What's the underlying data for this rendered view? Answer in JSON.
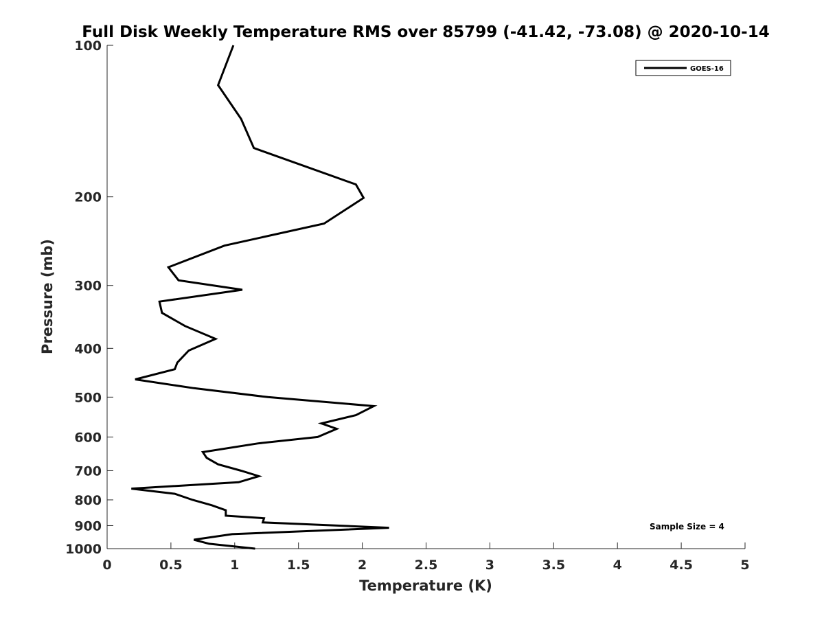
{
  "chart_data": {
    "type": "line",
    "title": "Full Disk Weekly Temperature RMS over 85799 (-41.42, -73.08) @ 2020-10-14",
    "xlabel": "Temperature (K)",
    "ylabel": "Pressure (mb)",
    "xlim": [
      0,
      5
    ],
    "ylim": [
      100,
      1000
    ],
    "y_scale": "log",
    "y_reversed": true,
    "x_ticks": [
      "0",
      "0.5",
      "1",
      "1.5",
      "2",
      "2.5",
      "3",
      "3.5",
      "4",
      "4.5",
      "5"
    ],
    "y_ticks": [
      "100",
      "200",
      "300",
      "400",
      "500",
      "600",
      "700",
      "800",
      "900",
      "1000"
    ],
    "grid": false,
    "legend_position": "top-right",
    "annotation": "Sample Size = 4",
    "series": [
      {
        "name": "GOES-16",
        "color": "#000000",
        "points": [
          [
            0.99,
            100
          ],
          [
            0.87,
            120
          ],
          [
            1.05,
            140
          ],
          [
            1.15,
            160
          ],
          [
            1.95,
            189
          ],
          [
            2.01,
            201
          ],
          [
            1.7,
            226
          ],
          [
            0.92,
            250
          ],
          [
            0.48,
            276
          ],
          [
            0.56,
            293
          ],
          [
            1.06,
            306
          ],
          [
            0.41,
            323
          ],
          [
            0.43,
            340
          ],
          [
            0.61,
            361
          ],
          [
            0.85,
            383
          ],
          [
            0.64,
            404
          ],
          [
            0.55,
            427
          ],
          [
            0.53,
            440
          ],
          [
            0.22,
            461
          ],
          [
            0.68,
            480
          ],
          [
            1.26,
            500
          ],
          [
            2.09,
            521
          ],
          [
            1.95,
            543
          ],
          [
            1.68,
            564
          ],
          [
            1.8,
            578
          ],
          [
            1.65,
            600
          ],
          [
            1.18,
            618
          ],
          [
            0.75,
            643
          ],
          [
            0.78,
            660
          ],
          [
            0.87,
            680
          ],
          [
            1.05,
            700
          ],
          [
            1.19,
            718
          ],
          [
            1.03,
            738
          ],
          [
            0.19,
            760
          ],
          [
            0.53,
            778
          ],
          [
            0.67,
            800
          ],
          [
            0.82,
            820
          ],
          [
            0.93,
            839
          ],
          [
            0.93,
            860
          ],
          [
            1.23,
            870
          ],
          [
            1.22,
            887
          ],
          [
            2.21,
            909
          ],
          [
            0.98,
            936
          ],
          [
            0.68,
            960
          ],
          [
            0.8,
            978
          ],
          [
            1.16,
            1000
          ]
        ]
      }
    ]
  }
}
